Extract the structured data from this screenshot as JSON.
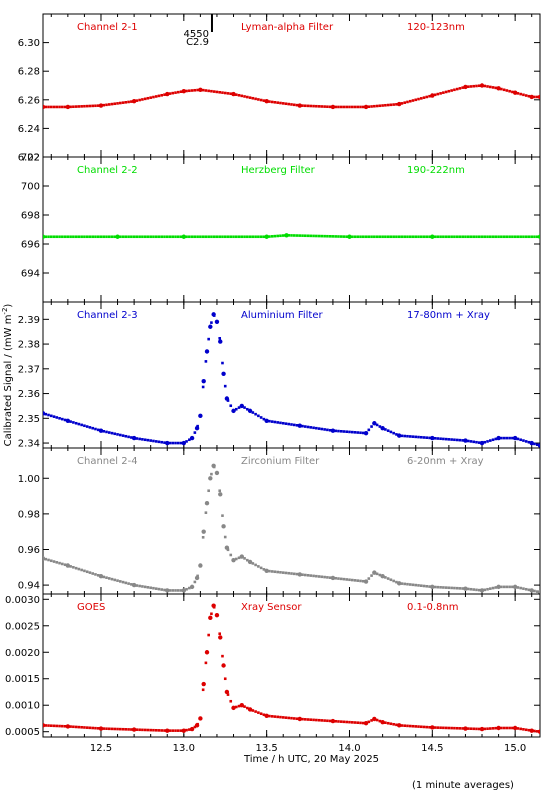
{
  "chart_data": [
    {
      "type": "scatter",
      "channel": "Channel 2-1",
      "filter": "Lyman-alpha Filter",
      "band": "120-123nm",
      "color": "#dd0000",
      "ylim": [
        6.22,
        6.32
      ],
      "yticks": [
        "6.22",
        "6.24",
        "6.26",
        "6.28",
        "6.30"
      ],
      "points": [
        [
          12.15,
          6.255
        ],
        [
          12.3,
          6.255
        ],
        [
          12.5,
          6.256
        ],
        [
          12.7,
          6.259
        ],
        [
          12.9,
          6.264
        ],
        [
          13.0,
          6.266
        ],
        [
          13.1,
          6.267
        ],
        [
          13.3,
          6.264
        ],
        [
          13.5,
          6.259
        ],
        [
          13.7,
          6.256
        ],
        [
          13.9,
          6.255
        ],
        [
          14.1,
          6.255
        ],
        [
          14.3,
          6.257
        ],
        [
          14.5,
          6.263
        ],
        [
          14.7,
          6.269
        ],
        [
          14.8,
          6.27
        ],
        [
          14.9,
          6.268
        ],
        [
          15.0,
          6.265
        ],
        [
          15.1,
          6.262
        ],
        [
          15.15,
          6.262
        ]
      ]
    },
    {
      "type": "scatter",
      "channel": "Channel 2-2",
      "filter": "Herzberg Filter",
      "band": "190-222nm",
      "color": "#00dd00",
      "ylim": [
        692,
        702
      ],
      "yticks": [
        "694",
        "696",
        "698",
        "700",
        "702"
      ],
      "points": [
        [
          12.15,
          696.5
        ],
        [
          12.6,
          696.5
        ],
        [
          13.0,
          696.5
        ],
        [
          13.5,
          696.5
        ],
        [
          13.62,
          696.6
        ],
        [
          14.0,
          696.5
        ],
        [
          14.5,
          696.5
        ],
        [
          15.15,
          696.5
        ]
      ]
    },
    {
      "type": "scatter",
      "channel": "Channel 2-3",
      "filter": "Aluminium Filter",
      "band": "17-80nm + Xray",
      "color": "#0000cc",
      "ylim": [
        2.338,
        2.397
      ],
      "yticks": [
        "2.34",
        "2.35",
        "2.36",
        "2.37",
        "2.38",
        "2.39"
      ],
      "points": [
        [
          12.15,
          2.352
        ],
        [
          12.3,
          2.349
        ],
        [
          12.5,
          2.345
        ],
        [
          12.7,
          2.342
        ],
        [
          12.9,
          2.34
        ],
        [
          13.0,
          2.34
        ],
        [
          13.05,
          2.342
        ],
        [
          13.08,
          2.346
        ],
        [
          13.1,
          2.351
        ],
        [
          13.12,
          2.365
        ],
        [
          13.14,
          2.377
        ],
        [
          13.16,
          2.387
        ],
        [
          13.18,
          2.392
        ],
        [
          13.2,
          2.389
        ],
        [
          13.22,
          2.381
        ],
        [
          13.24,
          2.368
        ],
        [
          13.26,
          2.358
        ],
        [
          13.3,
          2.353
        ],
        [
          13.35,
          2.355
        ],
        [
          13.4,
          2.353
        ],
        [
          13.5,
          2.349
        ],
        [
          13.7,
          2.347
        ],
        [
          13.9,
          2.345
        ],
        [
          14.1,
          2.344
        ],
        [
          14.15,
          2.348
        ],
        [
          14.2,
          2.346
        ],
        [
          14.3,
          2.343
        ],
        [
          14.5,
          2.342
        ],
        [
          14.7,
          2.341
        ],
        [
          14.8,
          2.34
        ],
        [
          14.9,
          2.342
        ],
        [
          15.0,
          2.342
        ],
        [
          15.1,
          2.34
        ],
        [
          15.15,
          2.339
        ]
      ]
    },
    {
      "type": "scatter",
      "channel": "Channel 2-4",
      "filter": "Zirconium Filter",
      "band": "6-20nm + Xray",
      "color": "#888888",
      "ylim": [
        0.935,
        1.017
      ],
      "yticks": [
        "0.94",
        "0.96",
        "0.98",
        "1.00"
      ],
      "points": [
        [
          12.15,
          0.955
        ],
        [
          12.3,
          0.951
        ],
        [
          12.5,
          0.945
        ],
        [
          12.7,
          0.94
        ],
        [
          12.9,
          0.937
        ],
        [
          13.0,
          0.937
        ],
        [
          13.05,
          0.939
        ],
        [
          13.08,
          0.944
        ],
        [
          13.1,
          0.951
        ],
        [
          13.12,
          0.97
        ],
        [
          13.14,
          0.986
        ],
        [
          13.16,
          1.0
        ],
        [
          13.18,
          1.007
        ],
        [
          13.2,
          1.003
        ],
        [
          13.22,
          0.991
        ],
        [
          13.24,
          0.973
        ],
        [
          13.26,
          0.961
        ],
        [
          13.3,
          0.954
        ],
        [
          13.35,
          0.956
        ],
        [
          13.4,
          0.953
        ],
        [
          13.5,
          0.948
        ],
        [
          13.7,
          0.946
        ],
        [
          13.9,
          0.944
        ],
        [
          14.1,
          0.942
        ],
        [
          14.15,
          0.947
        ],
        [
          14.2,
          0.945
        ],
        [
          14.3,
          0.941
        ],
        [
          14.5,
          0.939
        ],
        [
          14.7,
          0.938
        ],
        [
          14.8,
          0.937
        ],
        [
          14.9,
          0.939
        ],
        [
          15.0,
          0.939
        ],
        [
          15.1,
          0.937
        ],
        [
          15.15,
          0.936
        ]
      ]
    },
    {
      "type": "scatter",
      "channel": "GOES",
      "filter": "Xray Sensor",
      "band": "0.1-0.8nm",
      "color": "#dd0000",
      "ylim": [
        0.0004,
        0.0031
      ],
      "yticks": [
        "0.0005",
        "0.0010",
        "0.0015",
        "0.0020",
        "0.0025",
        "0.0030"
      ],
      "points": [
        [
          12.15,
          0.00062
        ],
        [
          12.3,
          0.0006
        ],
        [
          12.5,
          0.00056
        ],
        [
          12.7,
          0.00054
        ],
        [
          12.9,
          0.00052
        ],
        [
          13.0,
          0.00052
        ],
        [
          13.05,
          0.00055
        ],
        [
          13.08,
          0.00062
        ],
        [
          13.1,
          0.00075
        ],
        [
          13.12,
          0.0014
        ],
        [
          13.14,
          0.002
        ],
        [
          13.16,
          0.00265
        ],
        [
          13.18,
          0.00288
        ],
        [
          13.2,
          0.0027
        ],
        [
          13.22,
          0.00228
        ],
        [
          13.24,
          0.00175
        ],
        [
          13.26,
          0.00125
        ],
        [
          13.3,
          0.00095
        ],
        [
          13.35,
          0.001
        ],
        [
          13.4,
          0.00092
        ],
        [
          13.5,
          0.0008
        ],
        [
          13.7,
          0.00074
        ],
        [
          13.9,
          0.0007
        ],
        [
          14.1,
          0.00066
        ],
        [
          14.15,
          0.00074
        ],
        [
          14.2,
          0.00068
        ],
        [
          14.3,
          0.00062
        ],
        [
          14.5,
          0.00058
        ],
        [
          14.7,
          0.00056
        ],
        [
          14.8,
          0.00055
        ],
        [
          14.9,
          0.00057
        ],
        [
          15.0,
          0.00057
        ],
        [
          15.1,
          0.00052
        ],
        [
          15.15,
          0.0005
        ]
      ]
    }
  ],
  "x_axis": {
    "xlim": [
      12.15,
      15.15
    ],
    "ticks": [
      "12.5",
      "13.0",
      "13.5",
      "14.0",
      "14.5",
      "15.0"
    ],
    "xlabel": "Time / h UTC, 20 May 2025"
  },
  "y_axis_label": "Calibrated Signal / (mW m",
  "y_axis_label_sup": "-2",
  "y_axis_label_end": ")",
  "event": {
    "number": "4550",
    "class": "C2.9",
    "time": 13.17
  },
  "footnote": "(1 minute averages)"
}
